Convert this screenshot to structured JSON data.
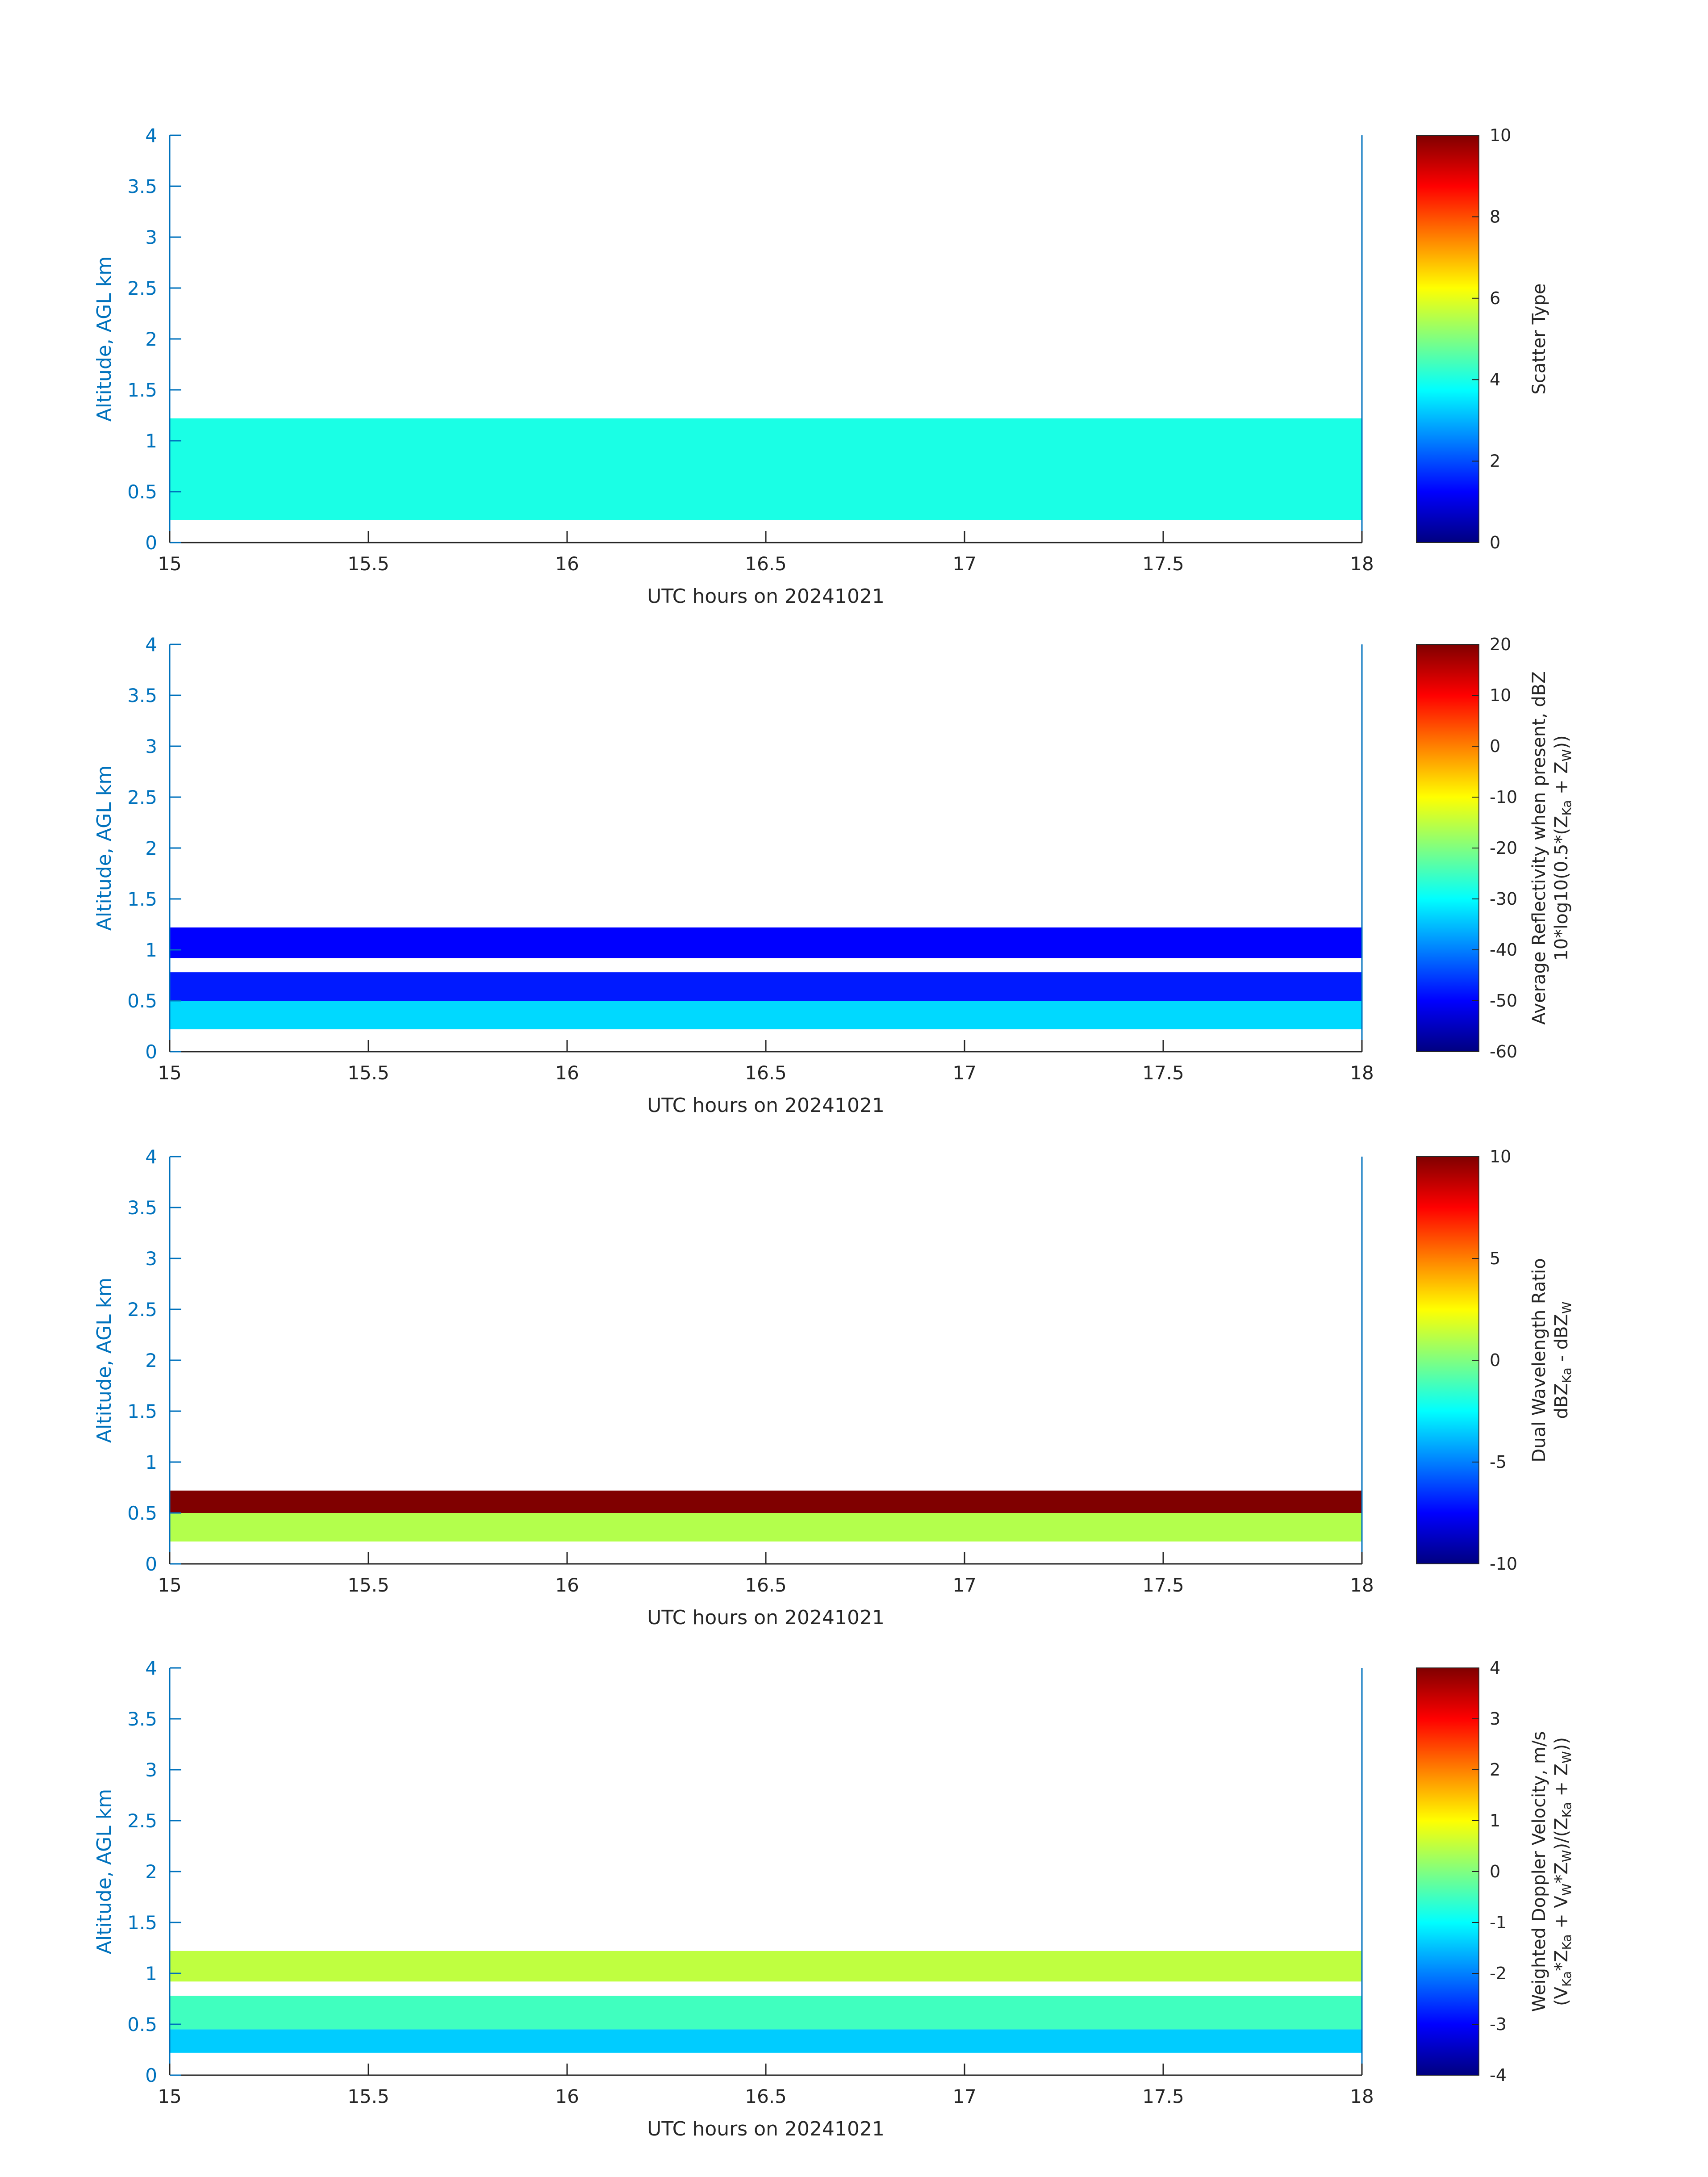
{
  "chart_data": [
    {
      "type": "heatmap",
      "xlabel": "UTC hours on 20241021",
      "ylabel": "Altitude, AGL km",
      "xlim": [
        15,
        18
      ],
      "ylim": [
        0,
        4
      ],
      "xticks": [
        "15",
        "15.5",
        "16",
        "16.5",
        "17",
        "17.5",
        "18"
      ],
      "yticks": [
        "0",
        "0.5",
        "1",
        "1.5",
        "2",
        "2.5",
        "3",
        "3.5",
        "4"
      ],
      "colormap": "jet",
      "colorbar": {
        "label_lines": [
          "Scatter Type"
        ],
        "clim": [
          0,
          10
        ],
        "ticks": [
          "0",
          "2",
          "4",
          "6",
          "8",
          "10"
        ]
      },
      "layers": [
        {
          "x": [
            15.0,
            18.0
          ],
          "bottom": 0.22,
          "top": 0.75,
          "value": 4
        },
        {
          "x": [
            15.0,
            18.0
          ],
          "bottom": 0.75,
          "top": 1.22,
          "value": 4
        }
      ]
    },
    {
      "type": "heatmap",
      "xlabel": "UTC hours on 20241021",
      "ylabel": "Altitude, AGL km",
      "xlim": [
        15,
        18
      ],
      "ylim": [
        0,
        4
      ],
      "xticks": [
        "15",
        "15.5",
        "16",
        "16.5",
        "17",
        "17.5",
        "18"
      ],
      "yticks": [
        "0",
        "0.5",
        "1",
        "1.5",
        "2",
        "2.5",
        "3",
        "3.5",
        "4"
      ],
      "colormap": "jet",
      "colorbar": {
        "label_lines": [
          "Average Reflectivity when present, dBZ",
          "10*log10(0.5*(Z",
          "Ka",
          " + Z",
          "W",
          "))"
        ],
        "clim": [
          -60,
          20
        ],
        "ticks": [
          "-60",
          "-50",
          "-40",
          "-30",
          "-20",
          "-10",
          "0",
          "10",
          "20"
        ]
      },
      "layers": [
        {
          "x": [
            15.0,
            18.0
          ],
          "bottom": 0.22,
          "top": 0.5,
          "value": -33
        },
        {
          "x": [
            15.0,
            18.0
          ],
          "bottom": 0.5,
          "top": 0.78,
          "value": -48
        },
        {
          "x": [
            15.0,
            18.0
          ],
          "bottom": 0.92,
          "top": 1.22,
          "value": -50
        }
      ]
    },
    {
      "type": "heatmap",
      "xlabel": "UTC hours on 20241021",
      "ylabel": "Altitude, AGL km",
      "xlim": [
        15,
        18
      ],
      "ylim": [
        0,
        4
      ],
      "xticks": [
        "15",
        "15.5",
        "16",
        "16.5",
        "17",
        "17.5",
        "18"
      ],
      "yticks": [
        "0",
        "0.5",
        "1",
        "1.5",
        "2",
        "2.5",
        "3",
        "3.5",
        "4"
      ],
      "colormap": "jet",
      "colorbar": {
        "label_lines": [
          "Dual Wavelength Ratio",
          "dBZ",
          "Ka",
          " - dBZ",
          "W"
        ],
        "clim": [
          -10,
          10
        ],
        "ticks": [
          "-10",
          "-5",
          "0",
          "5",
          "10"
        ]
      },
      "layers": [
        {
          "x": [
            15.0,
            18.0
          ],
          "bottom": 0.22,
          "top": 0.5,
          "value": 1
        },
        {
          "x": [
            15.0,
            18.0
          ],
          "bottom": 0.5,
          "top": 0.72,
          "value": 10
        }
      ]
    },
    {
      "type": "heatmap",
      "xlabel": "UTC hours on 20241021",
      "ylabel": "Altitude, AGL km",
      "xlim": [
        15,
        18
      ],
      "ylim": [
        0,
        4
      ],
      "xticks": [
        "15",
        "15.5",
        "16",
        "16.5",
        "17",
        "17.5",
        "18"
      ],
      "yticks": [
        "0",
        "0.5",
        "1",
        "1.5",
        "2",
        "2.5",
        "3",
        "3.5",
        "4"
      ],
      "colormap": "jet",
      "colorbar": {
        "label_lines": [
          "Weighted Doppler Velocity, m/s",
          "(V",
          "Ka",
          "*Z",
          "Ka",
          " + V",
          "W",
          "*Z",
          "W",
          ")/(Z",
          "Ka",
          " + Z",
          "W",
          "))"
        ],
        "clim": [
          -4,
          4
        ],
        "ticks": [
          "-4",
          "-3",
          "-2",
          "-1",
          "0",
          "1",
          "2",
          "3",
          "4"
        ]
      },
      "layers": [
        {
          "x": [
            15.0,
            18.0
          ],
          "bottom": 0.22,
          "top": 0.45,
          "value": -1.4
        },
        {
          "x": [
            15.0,
            18.0
          ],
          "bottom": 0.45,
          "top": 0.78,
          "value": -0.5
        },
        {
          "x": [
            15.0,
            18.0
          ],
          "bottom": 0.92,
          "top": 1.22,
          "value": 0.5
        }
      ]
    }
  ]
}
